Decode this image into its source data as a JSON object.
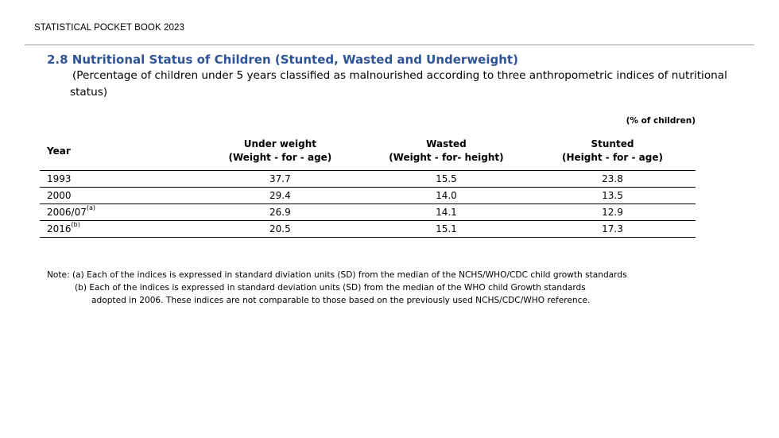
{
  "header": {
    "text": "STATISTICAL POCKET BOOK 2023"
  },
  "section": {
    "title": "2.8 Nutritional Status of Children (Stunted, Wasted and Underweight)",
    "subtitle": "(Percentage of children under 5 years classified as malnourished according to three anthropometric indices of nutritional status)"
  },
  "table": {
    "unit": "(% of children)",
    "headers": {
      "year": "Year",
      "underweight": {
        "line1": "Under weight",
        "line2": "(Weight - for - age)"
      },
      "wasted": {
        "line1": "Wasted",
        "line2": "(Weight - for- height)"
      },
      "stunted": {
        "line1": "Stunted",
        "line2": "(Height - for - age)"
      }
    },
    "rows": [
      {
        "year": "1993",
        "sup": "",
        "underweight": "37.7",
        "wasted": "15.5",
        "stunted": "23.8"
      },
      {
        "year": "2000",
        "sup": "",
        "underweight": "29.4",
        "wasted": "14.0",
        "stunted": "13.5"
      },
      {
        "year": "2006/07",
        "sup": "(a)",
        "underweight": "26.9",
        "wasted": "14.1",
        "stunted": "12.9"
      },
      {
        "year": "2016",
        "sup": "(b)",
        "underweight": "20.5",
        "wasted": "15.1",
        "stunted": "17.3"
      }
    ]
  },
  "notes": {
    "line1": "Note:  (a)  Each of the indices is expressed in standard diviation units (SD) from the median of the NCHS/WHO/CDC child growth standards",
    "line2": "(b)  Each of the indices is expressed in standard deviation units (SD) from the median of the WHO child Growth standards",
    "line3": "adopted in 2006.  These indices are not comparable to those based on the previously used NCHS/CDC/WHO reference."
  }
}
